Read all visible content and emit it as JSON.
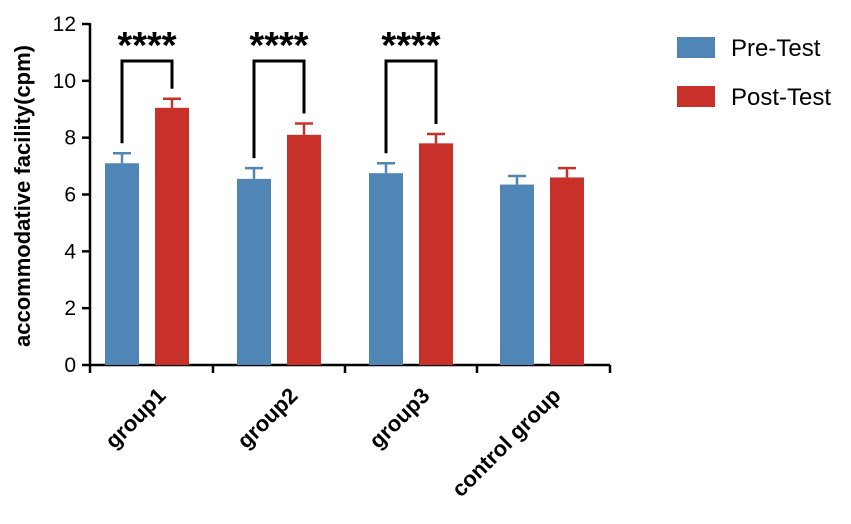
{
  "chart_data": {
    "type": "bar",
    "title": "",
    "xlabel": "",
    "ylabel": "accommodative facility(cpm)",
    "ylim": [
      0,
      12
    ],
    "yticks": [
      0,
      2,
      4,
      6,
      8,
      10,
      12
    ],
    "categories": [
      "group1",
      "group2",
      "group3",
      "control group"
    ],
    "series": [
      {
        "name": "Pre-Test",
        "color": "#4f86b6",
        "values": [
          7.1,
          6.55,
          6.75,
          6.35
        ],
        "error": [
          0.35,
          0.38,
          0.35,
          0.3
        ]
      },
      {
        "name": "Post-Test",
        "color": "#c8302a",
        "values": [
          9.05,
          8.1,
          7.8,
          6.6
        ],
        "error": [
          0.32,
          0.4,
          0.33,
          0.33
        ]
      }
    ],
    "significance": [
      {
        "category": "group1",
        "label": "****"
      },
      {
        "category": "group2",
        "label": "****"
      },
      {
        "category": "group3",
        "label": "****"
      }
    ],
    "legend_position": "top-right",
    "grid": false
  }
}
